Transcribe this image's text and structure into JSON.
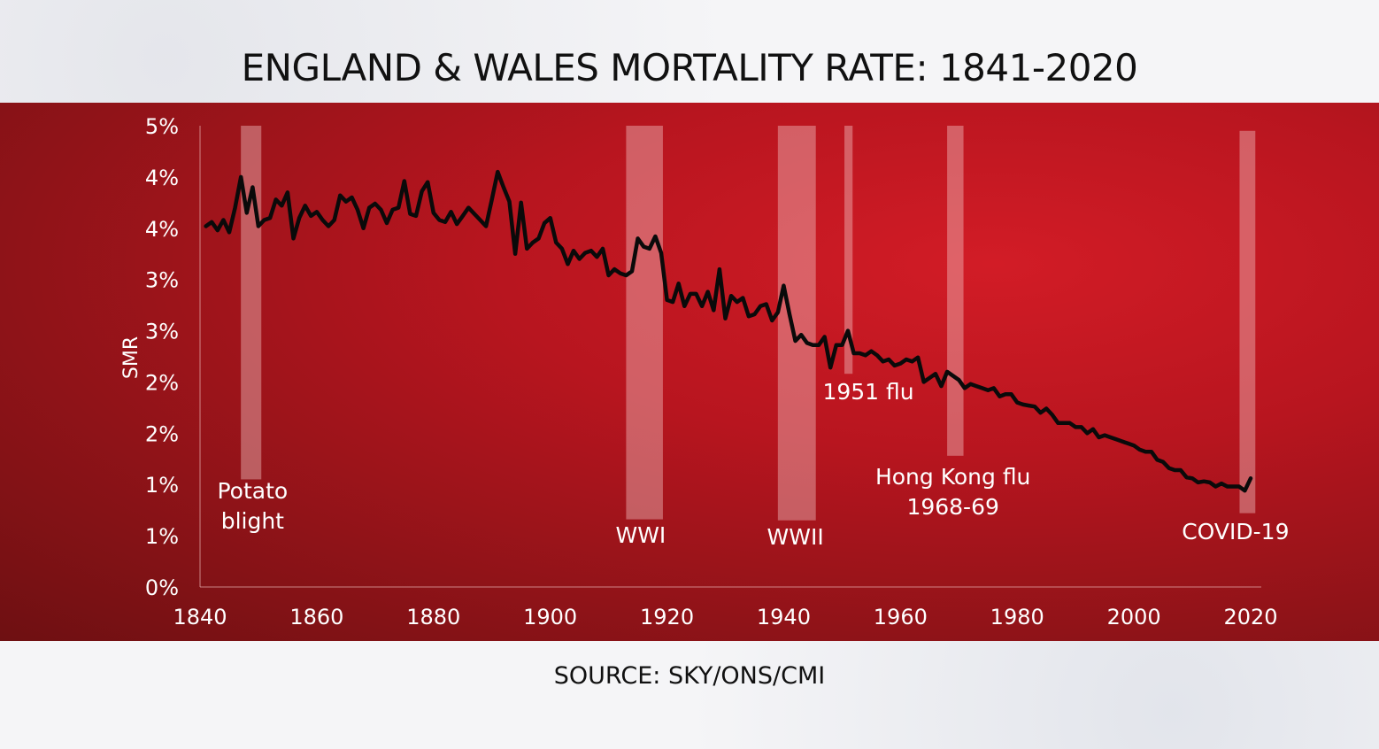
{
  "title": "ENGLAND & WALES MORTALITY RATE: 1841-2020",
  "source": "SOURCE: SKY/ONS/CMI",
  "colors": {
    "panel_red": "#c21a22",
    "line": "#0a0a0a",
    "band": "#f2c6c6",
    "text": "#ffffff"
  },
  "chart_data": {
    "type": "line",
    "title": "ENGLAND & WALES MORTALITY RATE: 1841-2020",
    "xlabel": "",
    "ylabel": "SMR",
    "xlim": [
      1840,
      2020
    ],
    "ylim": [
      0,
      4.5
    ],
    "x_ticks": [
      1840,
      1860,
      1880,
      1900,
      1920,
      1940,
      1960,
      1980,
      2000,
      2020
    ],
    "y_ticks": [
      {
        "value": 0,
        "label": "0%"
      },
      {
        "value": 0.5,
        "label": "1%"
      },
      {
        "value": 1.0,
        "label": "1%"
      },
      {
        "value": 1.5,
        "label": "2%"
      },
      {
        "value": 2.0,
        "label": "2%"
      },
      {
        "value": 2.5,
        "label": "3%"
      },
      {
        "value": 3.0,
        "label": "3%"
      },
      {
        "value": 3.5,
        "label": "4%"
      },
      {
        "value": 4.0,
        "label": "4%"
      },
      {
        "value": 4.5,
        "label": "5%"
      }
    ],
    "grid": false,
    "series": [
      {
        "points": [
          [
            1841,
            3.52
          ],
          [
            1842,
            3.56
          ],
          [
            1843,
            3.48
          ],
          [
            1844,
            3.58
          ],
          [
            1845,
            3.46
          ],
          [
            1846,
            3.7
          ],
          [
            1847,
            4.0
          ],
          [
            1848,
            3.65
          ],
          [
            1849,
            3.9
          ],
          [
            1850,
            3.52
          ],
          [
            1851,
            3.58
          ],
          [
            1852,
            3.6
          ],
          [
            1853,
            3.78
          ],
          [
            1854,
            3.72
          ],
          [
            1855,
            3.85
          ],
          [
            1856,
            3.4
          ],
          [
            1857,
            3.6
          ],
          [
            1858,
            3.72
          ],
          [
            1859,
            3.62
          ],
          [
            1860,
            3.66
          ],
          [
            1861,
            3.58
          ],
          [
            1862,
            3.52
          ],
          [
            1863,
            3.58
          ],
          [
            1864,
            3.82
          ],
          [
            1865,
            3.76
          ],
          [
            1866,
            3.8
          ],
          [
            1867,
            3.68
          ],
          [
            1868,
            3.5
          ],
          [
            1869,
            3.7
          ],
          [
            1870,
            3.74
          ],
          [
            1871,
            3.68
          ],
          [
            1872,
            3.55
          ],
          [
            1873,
            3.68
          ],
          [
            1874,
            3.7
          ],
          [
            1875,
            3.96
          ],
          [
            1876,
            3.64
          ],
          [
            1877,
            3.62
          ],
          [
            1878,
            3.86
          ],
          [
            1879,
            3.95
          ],
          [
            1880,
            3.65
          ],
          [
            1881,
            3.58
          ],
          [
            1882,
            3.56
          ],
          [
            1883,
            3.66
          ],
          [
            1884,
            3.54
          ],
          [
            1885,
            3.62
          ],
          [
            1886,
            3.7
          ],
          [
            1887,
            3.64
          ],
          [
            1888,
            3.58
          ],
          [
            1889,
            3.52
          ],
          [
            1890,
            3.78
          ],
          [
            1891,
            4.05
          ],
          [
            1892,
            3.9
          ],
          [
            1893,
            3.76
          ],
          [
            1894,
            3.25
          ],
          [
            1895,
            3.75
          ],
          [
            1896,
            3.3
          ],
          [
            1897,
            3.36
          ],
          [
            1898,
            3.4
          ],
          [
            1899,
            3.55
          ],
          [
            1900,
            3.6
          ],
          [
            1901,
            3.36
          ],
          [
            1902,
            3.3
          ],
          [
            1903,
            3.15
          ],
          [
            1904,
            3.28
          ],
          [
            1905,
            3.2
          ],
          [
            1906,
            3.26
          ],
          [
            1907,
            3.28
          ],
          [
            1908,
            3.22
          ],
          [
            1909,
            3.3
          ],
          [
            1910,
            3.04
          ],
          [
            1911,
            3.1
          ],
          [
            1912,
            3.06
          ],
          [
            1913,
            3.04
          ],
          [
            1914,
            3.08
          ],
          [
            1915,
            3.4
          ],
          [
            1916,
            3.32
          ],
          [
            1917,
            3.3
          ],
          [
            1918,
            3.42
          ],
          [
            1919,
            3.26
          ],
          [
            1920,
            2.8
          ],
          [
            1921,
            2.78
          ],
          [
            1922,
            2.96
          ],
          [
            1923,
            2.74
          ],
          [
            1924,
            2.86
          ],
          [
            1925,
            2.86
          ],
          [
            1926,
            2.74
          ],
          [
            1927,
            2.88
          ],
          [
            1928,
            2.7
          ],
          [
            1929,
            3.1
          ],
          [
            1930,
            2.62
          ],
          [
            1931,
            2.84
          ],
          [
            1932,
            2.78
          ],
          [
            1933,
            2.82
          ],
          [
            1934,
            2.64
          ],
          [
            1935,
            2.66
          ],
          [
            1936,
            2.74
          ],
          [
            1937,
            2.76
          ],
          [
            1938,
            2.6
          ],
          [
            1939,
            2.68
          ],
          [
            1940,
            2.94
          ],
          [
            1941,
            2.66
          ],
          [
            1942,
            2.4
          ],
          [
            1943,
            2.46
          ],
          [
            1944,
            2.38
          ],
          [
            1945,
            2.36
          ],
          [
            1946,
            2.36
          ],
          [
            1947,
            2.44
          ],
          [
            1948,
            2.14
          ],
          [
            1949,
            2.36
          ],
          [
            1950,
            2.36
          ],
          [
            1951,
            2.5
          ],
          [
            1952,
            2.28
          ],
          [
            1953,
            2.28
          ],
          [
            1954,
            2.26
          ],
          [
            1955,
            2.3
          ],
          [
            1956,
            2.26
          ],
          [
            1957,
            2.2
          ],
          [
            1958,
            2.22
          ],
          [
            1959,
            2.16
          ],
          [
            1960,
            2.18
          ],
          [
            1961,
            2.22
          ],
          [
            1962,
            2.2
          ],
          [
            1963,
            2.24
          ],
          [
            1964,
            2.0
          ],
          [
            1965,
            2.04
          ],
          [
            1966,
            2.08
          ],
          [
            1967,
            1.96
          ],
          [
            1968,
            2.1
          ],
          [
            1969,
            2.06
          ],
          [
            1970,
            2.02
          ],
          [
            1971,
            1.94
          ],
          [
            1972,
            1.98
          ],
          [
            1973,
            1.96
          ],
          [
            1974,
            1.94
          ],
          [
            1975,
            1.92
          ],
          [
            1976,
            1.94
          ],
          [
            1977,
            1.86
          ],
          [
            1978,
            1.88
          ],
          [
            1979,
            1.88
          ],
          [
            1980,
            1.8
          ],
          [
            1981,
            1.78
          ],
          [
            1982,
            1.77
          ],
          [
            1983,
            1.76
          ],
          [
            1984,
            1.7
          ],
          [
            1985,
            1.74
          ],
          [
            1986,
            1.68
          ],
          [
            1987,
            1.6
          ],
          [
            1988,
            1.6
          ],
          [
            1989,
            1.6
          ],
          [
            1990,
            1.56
          ],
          [
            1991,
            1.56
          ],
          [
            1992,
            1.5
          ],
          [
            1993,
            1.54
          ],
          [
            1994,
            1.46
          ],
          [
            1995,
            1.48
          ],
          [
            1996,
            1.46
          ],
          [
            1997,
            1.44
          ],
          [
            1998,
            1.42
          ],
          [
            1999,
            1.4
          ],
          [
            2000,
            1.38
          ],
          [
            2001,
            1.34
          ],
          [
            2002,
            1.32
          ],
          [
            2003,
            1.32
          ],
          [
            2004,
            1.24
          ],
          [
            2005,
            1.22
          ],
          [
            2006,
            1.16
          ],
          [
            2007,
            1.14
          ],
          [
            2008,
            1.14
          ],
          [
            2009,
            1.07
          ],
          [
            2010,
            1.06
          ],
          [
            2011,
            1.02
          ],
          [
            2012,
            1.03
          ],
          [
            2013,
            1.02
          ],
          [
            2014,
            0.98
          ],
          [
            2015,
            1.01
          ],
          [
            2016,
            0.98
          ],
          [
            2017,
            0.98
          ],
          [
            2018,
            0.98
          ],
          [
            2019,
            0.94
          ],
          [
            2020,
            1.06
          ]
        ]
      }
    ],
    "event_bands": [
      {
        "label": [
          "Potato",
          "blight"
        ],
        "start": 1847,
        "end": 1850.5,
        "top": 4.5,
        "bottom": 1.05
      },
      {
        "label": [
          "WWI"
        ],
        "start": 1913,
        "end": 1919.3,
        "top": 4.5,
        "bottom": 0.66
      },
      {
        "label": [
          "WWII"
        ],
        "start": 1939,
        "end": 1945.5,
        "top": 4.5,
        "bottom": 0.65
      },
      {
        "label": [
          "1951 flu"
        ],
        "start": 1950.4,
        "end": 1951.8,
        "top": 4.5,
        "bottom": 2.08
      },
      {
        "label": [
          "Hong Kong flu",
          "1968-69"
        ],
        "start": 1968,
        "end": 1970.8,
        "top": 4.5,
        "bottom": 1.28
      },
      {
        "label": [
          "COVID-19"
        ],
        "start": 2018.1,
        "end": 2020.8,
        "top": 4.45,
        "bottom": 0.72
      }
    ]
  }
}
